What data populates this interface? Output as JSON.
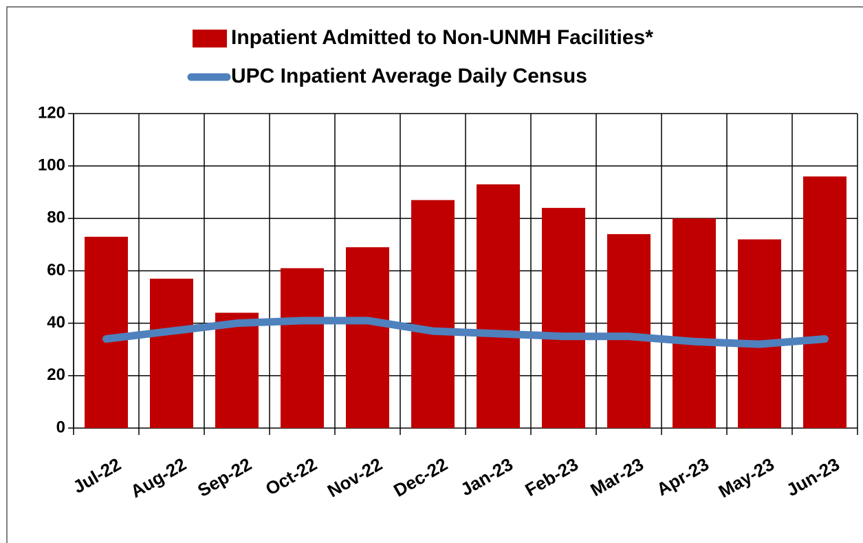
{
  "chart_data": {
    "type": "bar_line",
    "categories": [
      "Jul-22",
      "Aug-22",
      "Sep-22",
      "Oct-22",
      "Nov-22",
      "Dec-22",
      "Jan-23",
      "Feb-23",
      "Mar-23",
      "Apr-23",
      "May-23",
      "Jun-23"
    ],
    "series": [
      {
        "name": "Inpatient Admitted to Non-UNMH Facilities*",
        "type": "bar",
        "color": "#c00000",
        "values": [
          73,
          57,
          44,
          61,
          69,
          87,
          93,
          84,
          74,
          80,
          72,
          96
        ]
      },
      {
        "name": "UPC Inpatient Average Daily Census",
        "type": "line",
        "color": "#4f81bd",
        "values": [
          34,
          37,
          40,
          41,
          41,
          37,
          36,
          35,
          35,
          33,
          32,
          34
        ]
      }
    ],
    "ylim": [
      0,
      120
    ],
    "yticks": [
      0,
      20,
      40,
      60,
      80,
      100,
      120
    ],
    "grid": true,
    "legend": "top"
  }
}
